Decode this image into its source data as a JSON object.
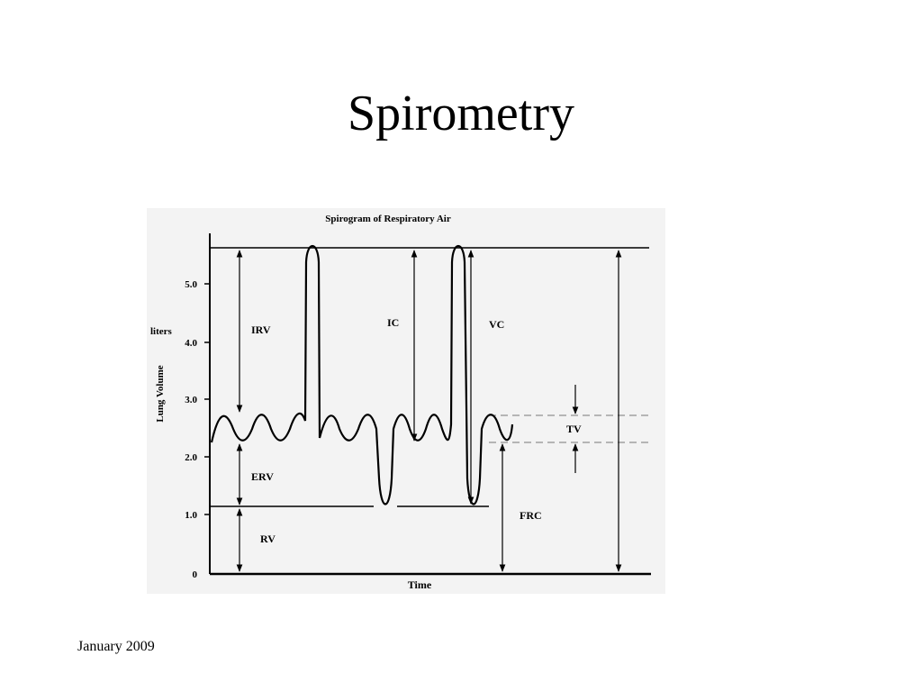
{
  "slide": {
    "title": "Spirometry",
    "footer": "January 2009"
  },
  "figure": {
    "title": "Spirogram of Respiratory Air",
    "y_axis": {
      "unit": "liters",
      "label": "Lung Volume",
      "ticks": [
        "5.0",
        "4.0",
        "3.0",
        "2.0",
        "1.0",
        "0"
      ]
    },
    "x_axis": {
      "label": "Time"
    },
    "volume_labels": {
      "irv": "IRV",
      "ic": "IC",
      "vc": "VC",
      "tv": "TV",
      "erv": "ERV",
      "frc": "FRC",
      "rv": "RV"
    }
  }
}
